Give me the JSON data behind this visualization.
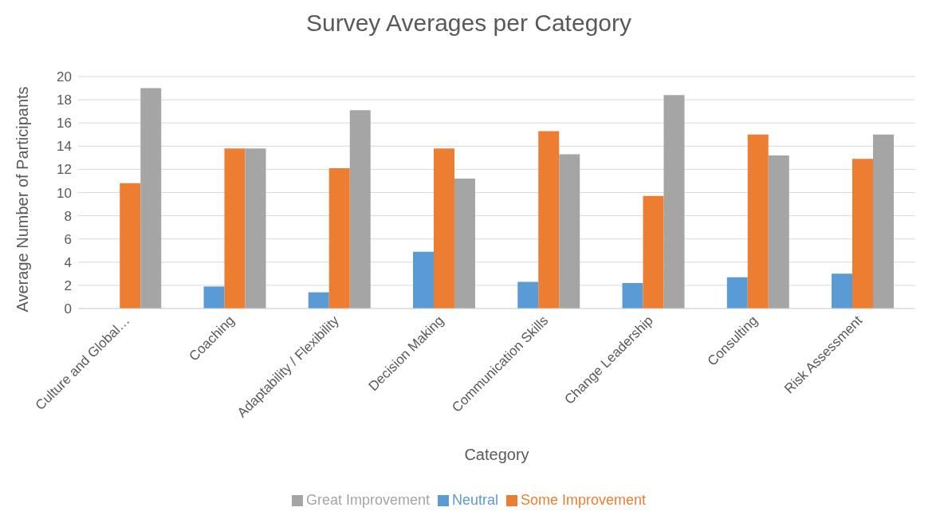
{
  "chart_data": {
    "type": "bar",
    "title": "Survey Averages per Category",
    "xlabel": "Category",
    "ylabel": "Average Number of Participants",
    "categories": [
      "Culture and Global…",
      "Coaching",
      "Adaptability / Flexibility",
      "Decision Making",
      "Communication Skills",
      "Change Leadership",
      "Consulting",
      "Risk Assessment"
    ],
    "series": [
      {
        "name": "Neutral",
        "color": "#5b9bd5",
        "values": [
          0,
          1.9,
          1.4,
          4.9,
          2.3,
          2.2,
          2.7,
          3.0
        ]
      },
      {
        "name": "Some Improvement",
        "color": "#ed7d31",
        "values": [
          10.8,
          13.8,
          12.1,
          13.8,
          15.3,
          9.7,
          15.0,
          12.9
        ]
      },
      {
        "name": "Great Improvement",
        "color": "#a5a5a5",
        "values": [
          19.0,
          13.8,
          17.1,
          11.2,
          13.3,
          18.4,
          13.2,
          15.0
        ]
      }
    ],
    "ylim": [
      0,
      20
    ],
    "yticks": [
      0,
      2,
      4,
      6,
      8,
      10,
      12,
      14,
      16,
      18,
      20
    ],
    "grid": "y",
    "legend": "bottom"
  }
}
